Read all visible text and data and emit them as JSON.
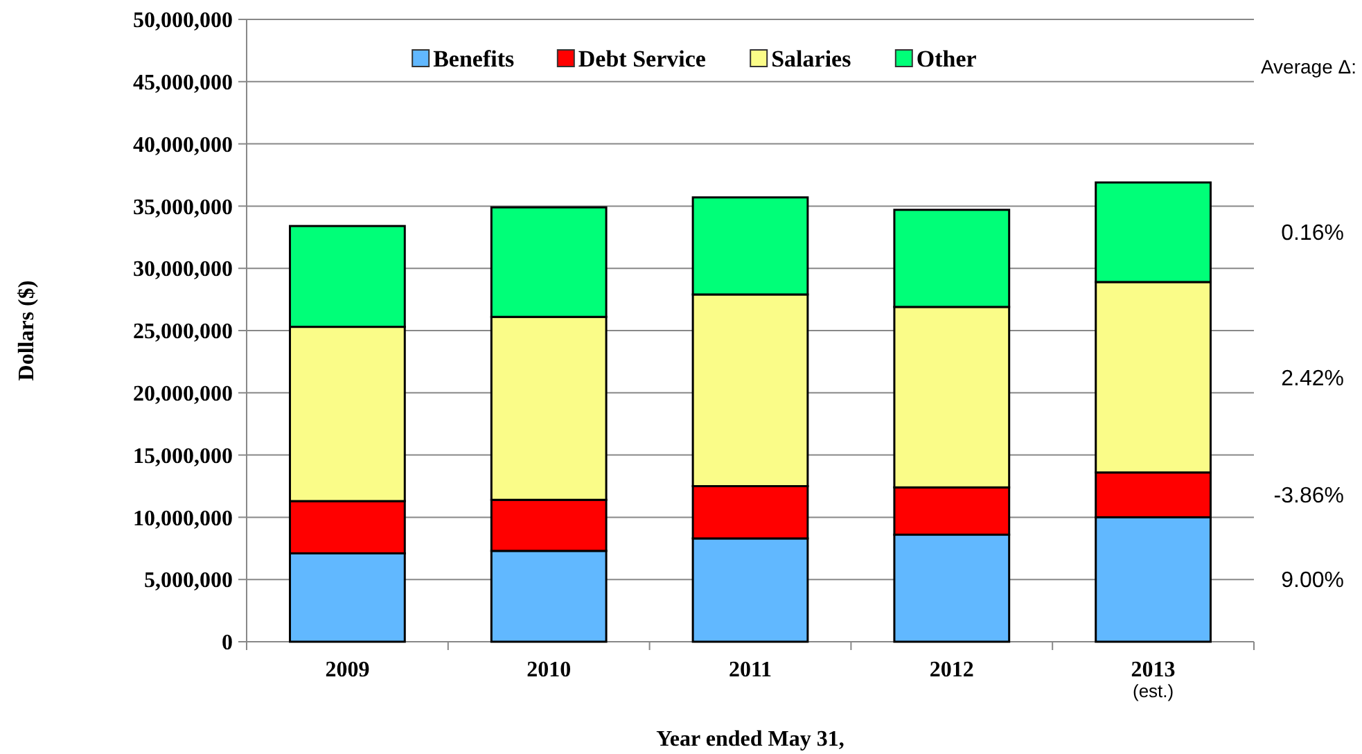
{
  "chart_data": {
    "type": "bar",
    "stacked": true,
    "xlabel": "Year ended May 31,",
    "ylabel": "Dollars ($)",
    "categories": [
      "2009",
      "2010",
      "2011",
      "2012",
      "2013$_{(est.)}$"
    ],
    "series": [
      {
        "name": "Benefits",
        "color": "#61b8ff",
        "values": [
          7100000,
          7300000,
          8300000,
          8600000,
          10000000
        ]
      },
      {
        "name": "Debt Service",
        "color": "#ff0000",
        "values": [
          4200000,
          4100000,
          4200000,
          3800000,
          3600000
        ]
      },
      {
        "name": "Salaries",
        "color": "#fafc88",
        "values": [
          14000000,
          14700000,
          15400000,
          14500000,
          15300000
        ]
      },
      {
        "name": "Other",
        "color": "#00ff78",
        "values": [
          8100000,
          8800000,
          7800000,
          7800000,
          8000000
        ]
      }
    ],
    "ylim": [
      0,
      50000000
    ],
    "yticks": [
      {
        "value": 0,
        "label": "0"
      },
      {
        "value": 5000000,
        "label": "5,000,000"
      },
      {
        "value": 10000000,
        "label": "10,000,000"
      },
      {
        "value": 15000000,
        "label": "15,000,000"
      },
      {
        "value": 20000000,
        "label": "20,000,000"
      },
      {
        "value": 25000000,
        "label": "25,000,000"
      },
      {
        "value": 30000000,
        "label": "30,000,000"
      },
      {
        "value": 35000000,
        "label": "35,000,000"
      },
      {
        "value": 40000000,
        "label": "40,000,000"
      },
      {
        "value": 45000000,
        "label": "45,000,000"
      },
      {
        "value": 50000000,
        "label": "50,000,000"
      }
    ],
    "grid": "y",
    "legend": "top",
    "annotations": [
      "Average Δ:",
      "0.16%",
      "2.42%",
      "-3.86%",
      "9.00%"
    ]
  }
}
